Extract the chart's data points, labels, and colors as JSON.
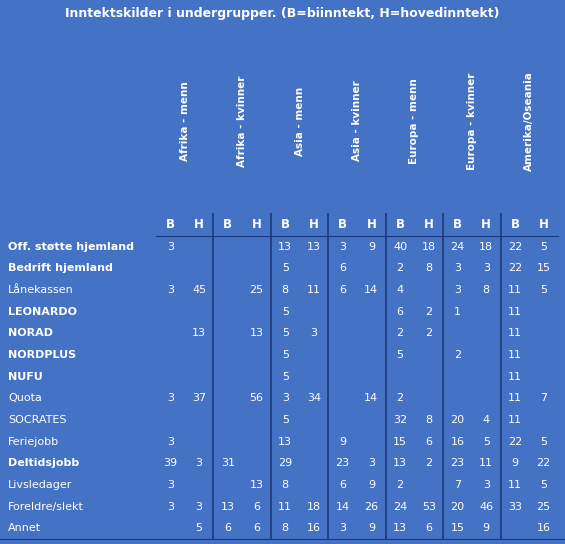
{
  "title": "Inntektskilder i undergrupper. (B=biinntekt, H=hovedinntekt)",
  "bg_color": "#4472C4",
  "text_color": "white",
  "header_groups": [
    "Afrika - menn",
    "Afrika - kvinner",
    "Asia - menn",
    "Asia - kvinner",
    "Europa - menn",
    "Europa - kvinner",
    "Amerika/Oseania"
  ],
  "sub_headers": [
    "B",
    "H",
    "B",
    "H",
    "B",
    "H",
    "B",
    "H",
    "B",
    "H",
    "B",
    "H",
    "B",
    "H"
  ],
  "row_labels": [
    "Off. støtte hjemland",
    "Bedrift hjemland",
    "Lånekassen",
    "LEONARDO",
    "NORAD",
    "NORDPLUS",
    "NUFU",
    "Quota",
    "SOCRATES",
    "Feriejobb",
    "Deltidsjobb",
    "Livsledager",
    "Foreldre/slekt",
    "Annet"
  ],
  "bold_rows": [
    0,
    1,
    3,
    4,
    5,
    6,
    10
  ],
  "data": [
    [
      "3",
      "",
      "",
      "",
      "13",
      "13",
      "3",
      "9",
      "40",
      "18",
      "24",
      "18",
      "22",
      "5"
    ],
    [
      "",
      "",
      "",
      "",
      "5",
      "",
      "6",
      "",
      "2",
      "8",
      "3",
      "3",
      "22",
      "15"
    ],
    [
      "3",
      "45",
      "",
      "25",
      "8",
      "11",
      "6",
      "14",
      "4",
      "",
      "3",
      "8",
      "11",
      "5"
    ],
    [
      "",
      "",
      "",
      "",
      "5",
      "",
      "",
      "",
      "6",
      "2",
      "1",
      "",
      "11",
      ""
    ],
    [
      "",
      "13",
      "",
      "13",
      "5",
      "3",
      "",
      "",
      "2",
      "2",
      "",
      "",
      "11",
      ""
    ],
    [
      "",
      "",
      "",
      "",
      "5",
      "",
      "",
      "",
      "5",
      "",
      "2",
      "",
      "11",
      ""
    ],
    [
      "",
      "",
      "",
      "",
      "5",
      "",
      "",
      "",
      "",
      "",
      "",
      "",
      "11",
      ""
    ],
    [
      "3",
      "37",
      "",
      "56",
      "3",
      "34",
      "",
      "14",
      "2",
      "",
      "",
      "",
      "11",
      "7"
    ],
    [
      "",
      "",
      "",
      "",
      "5",
      "",
      "",
      "",
      "32",
      "8",
      "20",
      "4",
      "11",
      ""
    ],
    [
      "3",
      "",
      "",
      "",
      "13",
      "",
      "9",
      "",
      "15",
      "6",
      "16",
      "5",
      "22",
      "5"
    ],
    [
      "39",
      "3",
      "31",
      "",
      "29",
      "",
      "23",
      "3",
      "13",
      "2",
      "23",
      "11",
      "9",
      "22"
    ],
    [
      "3",
      "",
      "",
      "13",
      "8",
      "",
      "6",
      "9",
      "2",
      "",
      "7",
      "3",
      "11",
      "5"
    ],
    [
      "3",
      "3",
      "13",
      "6",
      "11",
      "18",
      "14",
      "26",
      "24",
      "53",
      "20",
      "46",
      "33",
      "25"
    ],
    [
      "",
      "5",
      "6",
      "6",
      "8",
      "16",
      "3",
      "9",
      "13",
      "6",
      "15",
      "9",
      "",
      "16"
    ]
  ],
  "divider_cols": [
    2,
    4,
    6,
    8,
    10,
    12
  ],
  "title_fontsize": 9.0,
  "header_fontsize": 7.5,
  "cell_fontsize": 8.0,
  "label_fontsize": 8.0,
  "subheader_fontsize": 8.5
}
